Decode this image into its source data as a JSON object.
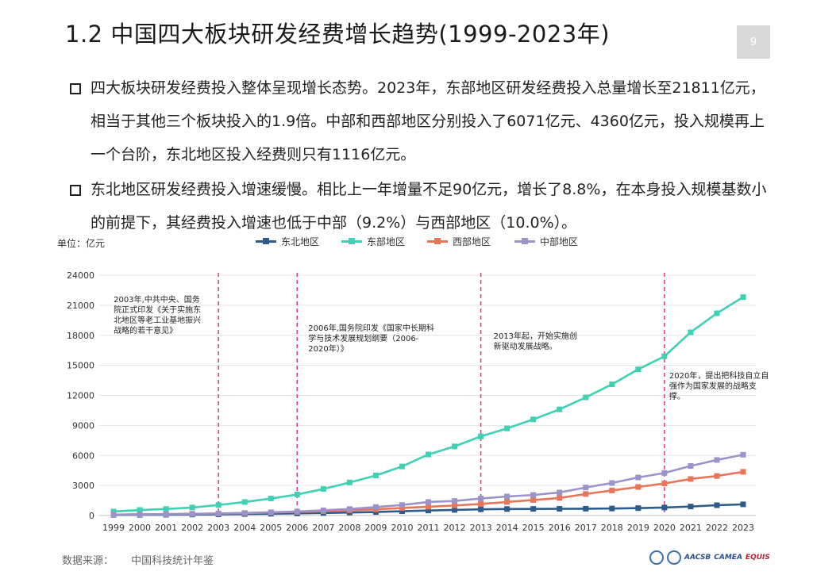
{
  "page": {
    "title": "1.2  中国四大板块研发经费增长趋势(1999-2023年)",
    "page_number": "9"
  },
  "bullets": [
    "四大板块研发经费投入整体呈现增长态势。2023年，东部地区研发经费投入总量增长至21811亿元，相当于其他三个板块投入的1.9倍。中部和西部地区分别投入了6071亿元、4360亿元，投入规模再上一个台阶，东北地区投入经费则只有1116亿元。",
    "东北地区研发经费投入增速缓慢。相比上一年增量不足90亿元，增长了8.8%，在本身投入规模基数小的前提下，其经费投入增速也低于中部（9.2%）与西部地区（10.0%）。"
  ],
  "footer": {
    "source_label": "数据来源：",
    "source_value": "中国科技统计年鉴",
    "logos": [
      "AACSB",
      "CAMEA",
      "EQUIS"
    ]
  },
  "chart_data": {
    "type": "line",
    "unit_label": "单位：亿元",
    "x": [
      "1999",
      "2000",
      "2001",
      "2002",
      "2003",
      "2004",
      "2005",
      "2006",
      "2007",
      "2008",
      "2009",
      "2010",
      "2011",
      "2012",
      "2013",
      "2014",
      "2015",
      "2016",
      "2017",
      "2018",
      "2019",
      "2020",
      "2021",
      "2022",
      "2023"
    ],
    "ylim": [
      0,
      24000
    ],
    "yticks": [
      "0",
      "3000",
      "6000",
      "9000",
      "12000",
      "15000",
      "18000",
      "21000",
      "24000"
    ],
    "grid": true,
    "legend_position": "top",
    "series": [
      {
        "name": "东北地区",
        "color": "#2e5c8a",
        "values": [
          60,
          70,
          80,
          100,
          120,
          150,
          180,
          210,
          250,
          300,
          350,
          430,
          500,
          560,
          620,
          650,
          660,
          670,
          680,
          700,
          740,
          800,
          900,
          1030,
          1116
        ]
      },
      {
        "name": "东部地区",
        "color": "#3ed1b2",
        "values": [
          400,
          550,
          650,
          800,
          1050,
          1350,
          1700,
          2100,
          2650,
          3300,
          4000,
          4900,
          6100,
          6900,
          7900,
          8700,
          9600,
          10600,
          11800,
          13100,
          14600,
          15900,
          18300,
          20200,
          21811
        ]
      },
      {
        "name": "西部地区",
        "color": "#e8745a",
        "values": [
          100,
          120,
          140,
          170,
          200,
          240,
          300,
          360,
          430,
          520,
          620,
          750,
          880,
          1000,
          1150,
          1350,
          1550,
          1750,
          2150,
          2500,
          2850,
          3200,
          3650,
          3950,
          4360
        ]
      },
      {
        "name": "中部地区",
        "color": "#9b93c9",
        "values": [
          90,
          110,
          130,
          160,
          200,
          250,
          320,
          400,
          520,
          650,
          850,
          1050,
          1350,
          1450,
          1700,
          1900,
          2050,
          2300,
          2800,
          3250,
          3800,
          4250,
          4950,
          5550,
          6071
        ]
      }
    ],
    "annotations": [
      {
        "year": "2003",
        "text": "2003年,中共中央、国务院正式印发《关于实施东北地区等老工业基地振兴战略的若干意见》"
      },
      {
        "year": "2006",
        "text": "2006年,国务院印发《国家中长期科学与技术发展规划纲要（2006-2020年）》"
      },
      {
        "year": "2013",
        "text": "2013年起，开始实施创新驱动发展战略。"
      },
      {
        "year": "2020",
        "text": "2020年，提出把科技自立自强作为国家发展的战略支撑。"
      }
    ]
  }
}
